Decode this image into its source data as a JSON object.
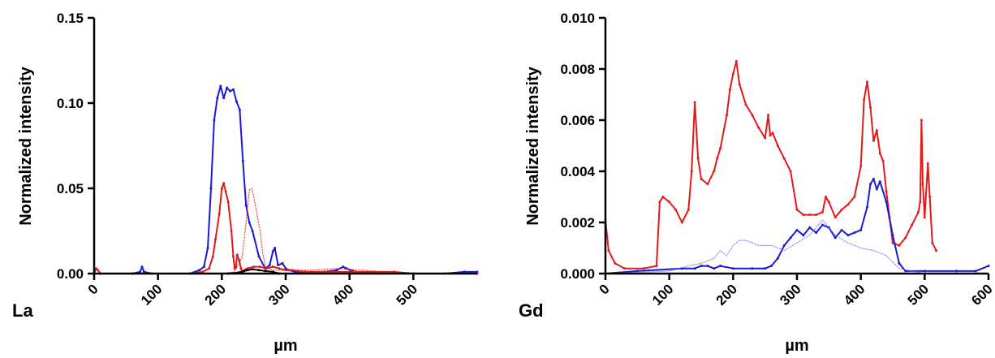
{
  "chart_data": [
    {
      "type": "line",
      "panel_label": "La",
      "xlabel": "µm",
      "ylabel": "Normalized intensity",
      "xlim": [
        0,
        600
      ],
      "ylim": [
        0,
        0.15
      ],
      "xticks": [
        0,
        100,
        200,
        300,
        400,
        500
      ],
      "xtick_labels": [
        "0",
        "100",
        "200",
        "300",
        "400",
        "500"
      ],
      "yticks": [
        0,
        0.05,
        0.1,
        0.15
      ],
      "ytick_labels": [
        "0.00",
        "0.05",
        "0.10",
        "0.15"
      ],
      "grid": false,
      "series": [
        {
          "color": "#1a1ad6",
          "style": "solid",
          "x": [
            0,
            60,
            72,
            75,
            78,
            90,
            150,
            165,
            172,
            178,
            183,
            188,
            193,
            198,
            203,
            208,
            213,
            218,
            223,
            228,
            233,
            238,
            243,
            248,
            258,
            268,
            275,
            280,
            283,
            288,
            295,
            300,
            305,
            315,
            330,
            360,
            380,
            390,
            395,
            410,
            450,
            500,
            550,
            580,
            600
          ],
          "y": [
            0,
            0,
            0.001,
            0.004,
            0.001,
            0,
            0,
            0.002,
            0.004,
            0.015,
            0.05,
            0.09,
            0.103,
            0.11,
            0.103,
            0.109,
            0.107,
            0.108,
            0.101,
            0.096,
            0.066,
            0.04,
            0.03,
            0.025,
            0.01,
            0.003,
            0.005,
            0.013,
            0.015,
            0.005,
            0.006,
            0.003,
            0.002,
            0.001,
            0.001,
            0.001,
            0.002,
            0.004,
            0.003,
            0.001,
            0,
            0,
            0,
            0.001,
            0.001
          ]
        },
        {
          "color": "#e31a1a",
          "style": "solid",
          "x": [
            0,
            3,
            6,
            10,
            80,
            150,
            170,
            180,
            186,
            190,
            196,
            200,
            203,
            206,
            210,
            215,
            218,
            220,
            222,
            224,
            227,
            230,
            232,
            235,
            240,
            250,
            260,
            270,
            280,
            290,
            300,
            310,
            330,
            360,
            400,
            440,
            470,
            500,
            600
          ],
          "y": [
            0,
            0.003,
            0.002,
            0,
            0,
            0,
            0.001,
            0.003,
            0.01,
            0.02,
            0.035,
            0.05,
            0.053,
            0.048,
            0.042,
            0.025,
            0.01,
            0.003,
            0.004,
            0.011,
            0.008,
            0.003,
            0.001,
            0.002,
            0.003,
            0.004,
            0.004,
            0.003,
            0.004,
            0.003,
            0.002,
            0.002,
            0.001,
            0.001,
            0.001,
            0.001,
            0.001,
            0,
            0
          ]
        },
        {
          "color": "#e31a1a",
          "style": "dotted",
          "x": [
            0,
            150,
            200,
            220,
            232,
            238,
            243,
            247,
            250,
            255,
            260,
            264,
            268,
            272,
            280,
            300,
            340,
            380,
            420,
            450,
            500,
            600
          ],
          "y": [
            0,
            0,
            0,
            0.001,
            0.01,
            0.03,
            0.049,
            0.05,
            0.045,
            0.035,
            0.025,
            0.012,
            0.005,
            0.003,
            0.002,
            0.002,
            0.002,
            0.003,
            0.002,
            0.001,
            0,
            0
          ]
        },
        {
          "color": "#000000",
          "style": "solid",
          "x": [
            210,
            225,
            235,
            240,
            248,
            258,
            268,
            280,
            290
          ],
          "y": [
            0,
            0.0005,
            0.0015,
            0.002,
            0.0025,
            0.002,
            0.0015,
            0.001,
            0
          ]
        }
      ]
    },
    {
      "type": "line",
      "panel_label": "Gd",
      "xlabel": "µm",
      "ylabel": "Normalized intensity",
      "xlim": [
        0,
        600
      ],
      "ylim": [
        0,
        0.01
      ],
      "xticks": [
        0,
        100,
        200,
        300,
        400,
        500,
        600
      ],
      "xtick_labels": [
        "0",
        "100",
        "200",
        "300",
        "400",
        "500",
        "600"
      ],
      "yticks": [
        0,
        0.002,
        0.004,
        0.006,
        0.008,
        0.01
      ],
      "ytick_labels": [
        "0.000",
        "0.002",
        "0.004",
        "0.006",
        "0.008",
        "0.010"
      ],
      "grid": false,
      "series": [
        {
          "color": "#e31a1a",
          "style": "solid",
          "x": [
            0,
            5,
            15,
            30,
            60,
            80,
            85,
            90,
            100,
            110,
            120,
            130,
            135,
            140,
            145,
            150,
            160,
            170,
            175,
            180,
            190,
            195,
            200,
            205,
            210,
            220,
            230,
            240,
            250,
            255,
            258,
            262,
            270,
            280,
            290,
            300,
            310,
            320,
            330,
            340,
            345,
            350,
            360,
            370,
            380,
            390,
            400,
            405,
            410,
            415,
            420,
            425,
            430,
            435,
            440,
            445,
            450,
            460,
            470,
            480,
            490,
            493,
            495,
            497,
            500,
            505,
            508,
            512,
            518
          ],
          "y": [
            0.0021,
            0.0009,
            0.0004,
            0.0002,
            0.0002,
            0.0003,
            0.0028,
            0.003,
            0.0028,
            0.0025,
            0.002,
            0.0025,
            0.004,
            0.0067,
            0.0045,
            0.0037,
            0.0035,
            0.004,
            0.0045,
            0.0049,
            0.0062,
            0.0072,
            0.0078,
            0.0083,
            0.0074,
            0.0066,
            0.0062,
            0.0057,
            0.0053,
            0.0062,
            0.0054,
            0.0055,
            0.005,
            0.0045,
            0.004,
            0.0025,
            0.0023,
            0.0023,
            0.0023,
            0.0024,
            0.003,
            0.0028,
            0.0022,
            0.0025,
            0.0027,
            0.003,
            0.0042,
            0.0068,
            0.0075,
            0.0065,
            0.0052,
            0.0056,
            0.0047,
            0.0044,
            0.0032,
            0.0022,
            0.0012,
            0.0011,
            0.0014,
            0.0019,
            0.0024,
            0.0028,
            0.006,
            0.0035,
            0.0022,
            0.0043,
            0.003,
            0.0012,
            0.0009
          ]
        },
        {
          "color": "#1a1ad6",
          "style": "solid",
          "x": [
            0,
            50,
            120,
            140,
            150,
            160,
            170,
            180,
            200,
            230,
            250,
            260,
            270,
            280,
            290,
            300,
            310,
            320,
            330,
            340,
            350,
            360,
            370,
            380,
            390,
            400,
            410,
            415,
            420,
            425,
            430,
            440,
            450,
            460,
            470,
            500,
            550,
            580,
            600
          ],
          "y": [
            0,
            0.0001,
            0.0002,
            0.0002,
            0.0003,
            0.0003,
            0.0002,
            0.0003,
            0.0002,
            0.0002,
            0.0002,
            0.0003,
            0.0006,
            0.0011,
            0.0014,
            0.0017,
            0.0015,
            0.0018,
            0.0016,
            0.0019,
            0.0018,
            0.0014,
            0.0017,
            0.0015,
            0.0016,
            0.0017,
            0.0026,
            0.0035,
            0.0037,
            0.0033,
            0.0036,
            0.0028,
            0.0015,
            0.0004,
            0.0001,
            0.0001,
            0.0001,
            0.0001,
            0.0003
          ]
        },
        {
          "color": "#6b6bf0",
          "style": "dotted",
          "x": [
            0,
            100,
            130,
            150,
            170,
            180,
            190,
            200,
            210,
            220,
            240,
            260,
            280,
            300,
            320,
            340,
            350,
            360,
            380,
            400,
            420,
            440,
            460,
            480,
            500
          ],
          "y": [
            0,
            0.0001,
            0.0003,
            0.0004,
            0.0006,
            0.0009,
            0.0007,
            0.0011,
            0.0013,
            0.0013,
            0.0011,
            0.0011,
            0.0009,
            0.0012,
            0.0015,
            0.0021,
            0.0018,
            0.0015,
            0.0012,
            0.001,
            0.0009,
            0.0007,
            0.0002,
            0.0001,
            0
          ]
        }
      ]
    }
  ]
}
